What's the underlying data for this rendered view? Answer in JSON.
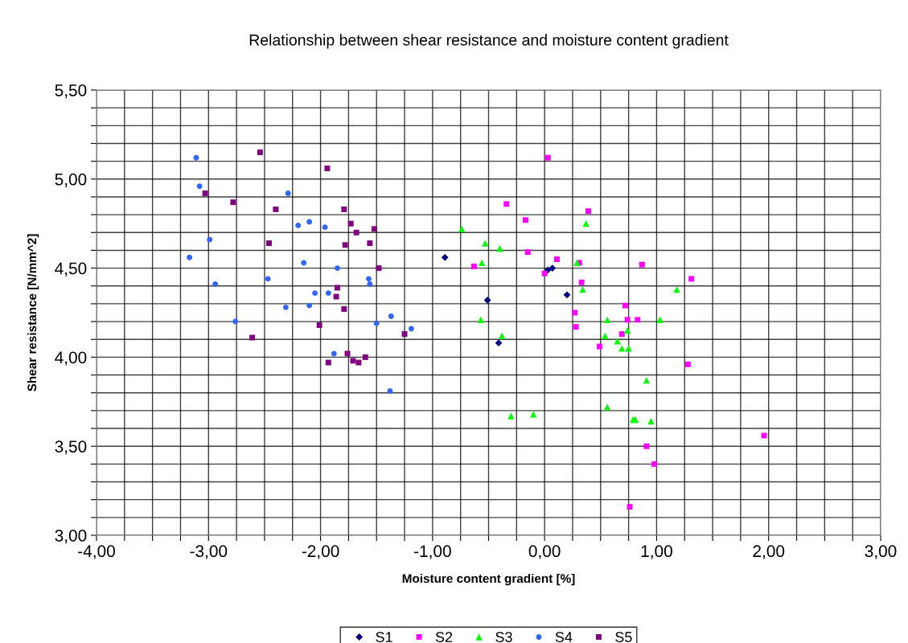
{
  "chart_data": {
    "type": "scatter",
    "title": "Relationship between shear resistance and moisture content gradient",
    "xlabel": "Moisture content gradient [%]",
    "ylabel": "Shear resistance [N/mm^2]",
    "xlim": [
      -4,
      3
    ],
    "ylim": [
      3,
      5.5
    ],
    "xticks": [
      {
        "value": -4,
        "label": "-4,00"
      },
      {
        "value": -3.75,
        "label": null
      },
      {
        "value": -3.5,
        "label": null
      },
      {
        "value": -3.25,
        "label": null
      },
      {
        "value": -3,
        "label": "-3,00"
      },
      {
        "value": -2.75,
        "label": null
      },
      {
        "value": -2.5,
        "label": null
      },
      {
        "value": -2.25,
        "label": null
      },
      {
        "value": -2,
        "label": "-2,00"
      },
      {
        "value": -1.75,
        "label": null
      },
      {
        "value": -1.5,
        "label": null
      },
      {
        "value": -1.25,
        "label": null
      },
      {
        "value": -1,
        "label": "-1,00"
      },
      {
        "value": -0.75,
        "label": null
      },
      {
        "value": -0.5,
        "label": null
      },
      {
        "value": -0.25,
        "label": null
      },
      {
        "value": 0,
        "label": "0,00"
      },
      {
        "value": 0.25,
        "label": null
      },
      {
        "value": 0.5,
        "label": null
      },
      {
        "value": 0.75,
        "label": null
      },
      {
        "value": 1,
        "label": "1,00"
      },
      {
        "value": 1.25,
        "label": null
      },
      {
        "value": 1.5,
        "label": null
      },
      {
        "value": 1.75,
        "label": null
      },
      {
        "value": 2,
        "label": "2,00"
      },
      {
        "value": 2.25,
        "label": null
      },
      {
        "value": 2.5,
        "label": null
      },
      {
        "value": 2.75,
        "label": null
      },
      {
        "value": 3,
        "label": "3,00"
      }
    ],
    "yticks": [
      {
        "value": 3,
        "label": "3,00"
      },
      {
        "value": 3.1,
        "label": null
      },
      {
        "value": 3.2,
        "label": null
      },
      {
        "value": 3.3,
        "label": null
      },
      {
        "value": 3.4,
        "label": null
      },
      {
        "value": 3.5,
        "label": "3,50"
      },
      {
        "value": 3.6,
        "label": null
      },
      {
        "value": 3.7,
        "label": null
      },
      {
        "value": 3.8,
        "label": null
      },
      {
        "value": 3.9,
        "label": null
      },
      {
        "value": 4,
        "label": "4,00"
      },
      {
        "value": 4.1,
        "label": null
      },
      {
        "value": 4.2,
        "label": null
      },
      {
        "value": 4.3,
        "label": null
      },
      {
        "value": 4.4,
        "label": null
      },
      {
        "value": 4.5,
        "label": "4,50"
      },
      {
        "value": 4.6,
        "label": null
      },
      {
        "value": 4.7,
        "label": null
      },
      {
        "value": 4.8,
        "label": null
      },
      {
        "value": 4.9,
        "label": null
      },
      {
        "value": 5,
        "label": "5,00"
      },
      {
        "value": 5.1,
        "label": null
      },
      {
        "value": 5.2,
        "label": null
      },
      {
        "value": 5.3,
        "label": null
      },
      {
        "value": 5.4,
        "label": null
      },
      {
        "value": 5.5,
        "label": "5,50"
      }
    ],
    "grid": true,
    "legend": "bottom",
    "series": [
      {
        "name": "S1",
        "color": "#000080",
        "marker": "diamond",
        "x": [
          -0.89,
          -0.51,
          -0.41,
          0.03,
          0.07,
          0.2
        ],
        "values": [
          4.56,
          4.32,
          4.08,
          4.49,
          4.5,
          4.35
        ]
      },
      {
        "name": "S2",
        "color": "#ff00ff",
        "marker": "square",
        "x": [
          0.03,
          -0.34,
          -0.17,
          0.39,
          -0.15,
          0.11,
          -0.63,
          0.0,
          0.31,
          0.87,
          1.31,
          0.33,
          0.72,
          0.27,
          0.74,
          0.83,
          0.28,
          0.69,
          0.49,
          1.28,
          0.91,
          0.98,
          0.76,
          1.96
        ],
        "values": [
          5.12,
          4.86,
          4.77,
          4.82,
          4.59,
          4.55,
          4.51,
          4.47,
          4.53,
          4.52,
          4.44,
          4.42,
          4.29,
          4.25,
          4.21,
          4.21,
          4.17,
          4.13,
          4.06,
          3.96,
          3.5,
          3.4,
          3.16,
          3.56
        ]
      },
      {
        "name": "S3",
        "color": "#00ff00",
        "marker": "triangle",
        "x": [
          -0.74,
          -0.53,
          -0.4,
          -0.56,
          0.29,
          0.37,
          0.34,
          1.18,
          -0.57,
          -0.38,
          0.56,
          1.03,
          0.74,
          0.54,
          0.65,
          0.69,
          0.75,
          0.91,
          0.56,
          -0.3,
          -0.1,
          0.79,
          0.81,
          0.95
        ],
        "values": [
          4.72,
          4.64,
          4.61,
          4.53,
          4.53,
          4.75,
          4.38,
          4.38,
          4.21,
          4.12,
          4.21,
          4.21,
          4.15,
          4.12,
          4.09,
          4.05,
          4.05,
          3.87,
          3.72,
          3.67,
          3.68,
          3.65,
          3.65,
          3.64
        ]
      },
      {
        "name": "S4",
        "color": "#3366ff",
        "marker": "circle",
        "x": [
          -3.11,
          -3.08,
          -2.29,
          -2.99,
          -2.2,
          -2.1,
          -1.96,
          -3.17,
          -2.15,
          -1.85,
          -2.47,
          -2.94,
          -1.57,
          -1.56,
          -2.05,
          -1.93,
          -2.31,
          -2.1,
          -2.76,
          -1.37,
          -1.5,
          -1.19,
          -1.88,
          -1.38
        ],
        "values": [
          5.12,
          4.96,
          4.92,
          4.66,
          4.74,
          4.76,
          4.73,
          4.56,
          4.53,
          4.5,
          4.44,
          4.41,
          4.44,
          4.41,
          4.36,
          4.36,
          4.28,
          4.29,
          4.2,
          4.23,
          4.19,
          4.16,
          4.02,
          3.81
        ]
      },
      {
        "name": "S5",
        "color": "#800080",
        "marker": "square",
        "x": [
          -2.54,
          -1.94,
          -3.03,
          -2.78,
          -2.4,
          -1.79,
          -1.73,
          -1.68,
          -1.52,
          -2.46,
          -1.78,
          -1.56,
          -1.48,
          -1.85,
          -1.86,
          -1.79,
          -2.01,
          -1.25,
          -2.61,
          -1.76,
          -1.93,
          -1.71,
          -1.66,
          -1.6
        ],
        "values": [
          5.15,
          5.06,
          4.92,
          4.87,
          4.83,
          4.83,
          4.75,
          4.7,
          4.72,
          4.64,
          4.63,
          4.64,
          4.5,
          4.39,
          4.34,
          4.27,
          4.18,
          4.13,
          4.11,
          4.02,
          3.97,
          3.98,
          3.97,
          4.0
        ]
      }
    ]
  }
}
